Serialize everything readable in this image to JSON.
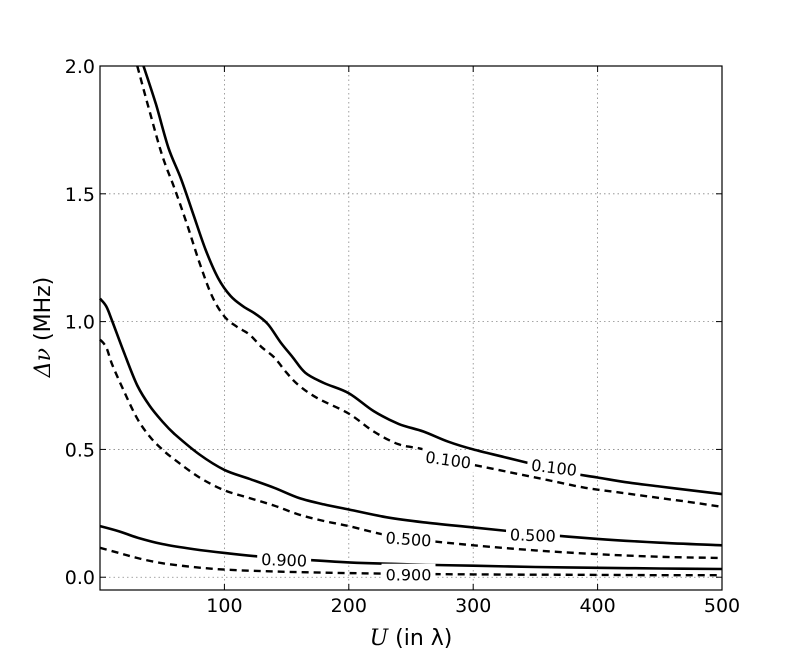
{
  "chart_data": {
    "type": "line",
    "title": "",
    "xlabel": {
      "math": "U",
      "text": " (in λ)"
    },
    "ylabel": {
      "math": "Δν",
      "text": " (MHz)"
    },
    "xlim": [
      0,
      500
    ],
    "ylim": [
      -0.05,
      2.0
    ],
    "xticks": [
      100,
      200,
      300,
      400,
      500
    ],
    "xtick_labels": [
      "100",
      "200",
      "300",
      "400",
      "500"
    ],
    "yticks": [
      0.0,
      0.5,
      1.0,
      1.5,
      2.0
    ],
    "ytick_labels": [
      "0.0",
      "0.5",
      "1.0",
      "1.5",
      "2.0"
    ],
    "grid": true,
    "series": [
      {
        "style": "solid",
        "level": "0.100",
        "x": [
          35,
          45,
          55,
          65,
          75,
          85,
          95,
          105,
          115,
          125,
          135,
          145,
          155,
          165,
          180,
          200,
          220,
          240,
          260,
          280,
          300,
          325,
          350,
          375,
          400,
          425,
          450,
          475,
          500
        ],
        "y": [
          2.0,
          1.85,
          1.68,
          1.56,
          1.42,
          1.28,
          1.17,
          1.1,
          1.06,
          1.03,
          0.99,
          0.92,
          0.86,
          0.8,
          0.76,
          0.72,
          0.65,
          0.6,
          0.57,
          0.53,
          0.5,
          0.47,
          0.44,
          0.41,
          0.39,
          0.37,
          0.355,
          0.34,
          0.325
        ]
      },
      {
        "style": "dashed",
        "level": "0.100",
        "x": [
          30,
          40,
          50,
          60,
          70,
          80,
          90,
          100,
          110,
          120,
          130,
          140,
          150,
          160,
          175,
          200,
          220,
          240,
          260,
          280,
          300,
          330,
          360,
          390,
          420,
          450,
          480,
          500
        ],
        "y": [
          2.0,
          1.82,
          1.65,
          1.52,
          1.38,
          1.23,
          1.1,
          1.02,
          0.98,
          0.95,
          0.9,
          0.86,
          0.8,
          0.75,
          0.7,
          0.64,
          0.57,
          0.52,
          0.5,
          0.46,
          0.44,
          0.41,
          0.38,
          0.35,
          0.33,
          0.31,
          0.29,
          0.275
        ]
      },
      {
        "style": "solid",
        "level": "0.500",
        "x": [
          0,
          5,
          10,
          20,
          30,
          40,
          50,
          60,
          80,
          100,
          120,
          140,
          160,
          180,
          200,
          230,
          260,
          300,
          350,
          400,
          450,
          500
        ],
        "y": [
          1.09,
          1.06,
          1.0,
          0.87,
          0.75,
          0.67,
          0.61,
          0.56,
          0.48,
          0.42,
          0.385,
          0.35,
          0.31,
          0.285,
          0.265,
          0.235,
          0.215,
          0.195,
          0.17,
          0.15,
          0.135,
          0.125
        ]
      },
      {
        "style": "dashed",
        "level": "0.500",
        "x": [
          0,
          5,
          10,
          20,
          30,
          40,
          50,
          60,
          80,
          100,
          120,
          140,
          160,
          180,
          200,
          230,
          260,
          300,
          350,
          400,
          450,
          500
        ],
        "y": [
          0.93,
          0.9,
          0.83,
          0.72,
          0.62,
          0.55,
          0.5,
          0.46,
          0.39,
          0.34,
          0.31,
          0.28,
          0.245,
          0.22,
          0.2,
          0.165,
          0.145,
          0.125,
          0.105,
          0.09,
          0.08,
          0.075
        ]
      },
      {
        "style": "solid",
        "level": "0.900",
        "x": [
          0,
          15,
          30,
          50,
          75,
          100,
          130,
          160,
          200,
          250,
          300,
          350,
          400,
          450,
          500
        ],
        "y": [
          0.2,
          0.18,
          0.155,
          0.13,
          0.11,
          0.095,
          0.08,
          0.07,
          0.058,
          0.05,
          0.045,
          0.04,
          0.037,
          0.034,
          0.032
        ]
      },
      {
        "style": "dashed",
        "level": "0.900",
        "x": [
          0,
          15,
          30,
          50,
          75,
          100,
          130,
          160,
          200,
          250,
          300,
          350,
          400,
          450,
          500
        ],
        "y": [
          0.115,
          0.095,
          0.075,
          0.055,
          0.04,
          0.03,
          0.024,
          0.02,
          0.016,
          0.013,
          0.011,
          0.01,
          0.009,
          0.008,
          0.008
        ]
      }
    ],
    "annotations": [
      {
        "text": "0.100",
        "x": 280,
        "y": 0.46,
        "angle": 8
      },
      {
        "text": "0.100",
        "x": 365,
        "y": 0.43,
        "angle": 7
      },
      {
        "text": "0.500",
        "x": 248,
        "y": 0.15,
        "angle": 4
      },
      {
        "text": "0.500",
        "x": 348,
        "y": 0.165,
        "angle": 2
      },
      {
        "text": "0.900",
        "x": 148,
        "y": 0.068,
        "angle": 2
      },
      {
        "text": "0.900",
        "x": 248,
        "y": 0.01,
        "angle": 0
      }
    ]
  }
}
